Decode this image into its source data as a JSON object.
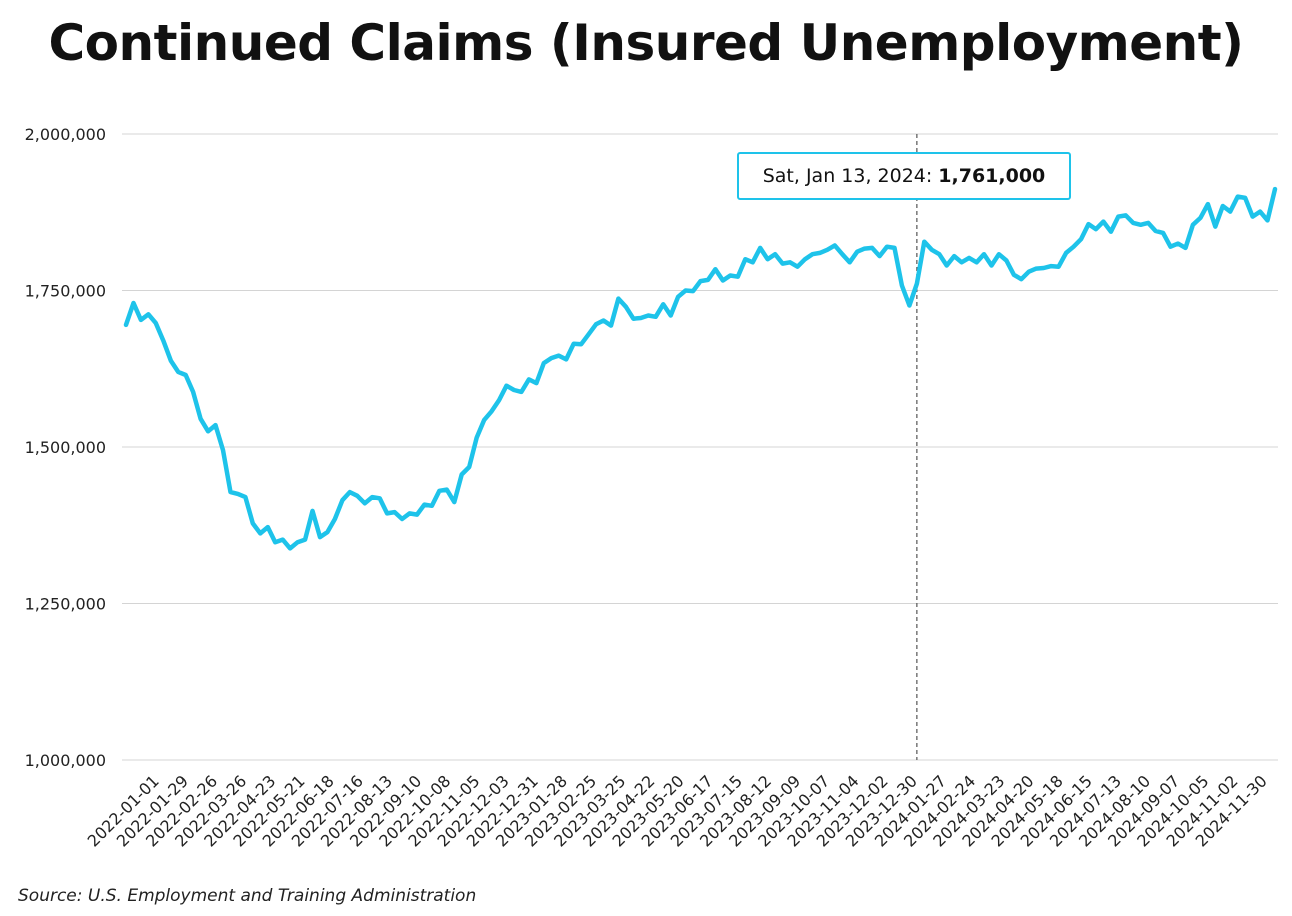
{
  "chart_data": {
    "type": "line",
    "title": "Continued Claims (Insured Unemployment)",
    "xlabel": "",
    "ylabel": "",
    "ylim": [
      1000000,
      2000000
    ],
    "yticks": [
      1000000,
      1250000,
      1500000,
      1750000,
      2000000
    ],
    "ytick_labels": [
      "1,000,000",
      "1,250,000",
      "1,500,000",
      "1,750,000",
      "2,000,000"
    ],
    "xtick_labels": [
      "2022-01-01",
      "2022-01-29",
      "2022-02-26",
      "2022-03-26",
      "2022-04-23",
      "2022-05-21",
      "2022-06-18",
      "2022-07-16",
      "2022-08-13",
      "2022-09-10",
      "2022-10-08",
      "2022-11-05",
      "2022-12-03",
      "2022-12-31",
      "2023-01-28",
      "2023-02-25",
      "2023-03-25",
      "2023-04-22",
      "2023-05-20",
      "2023-06-17",
      "2023-07-15",
      "2023-08-12",
      "2023-09-09",
      "2023-10-07",
      "2023-11-04",
      "2023-12-02",
      "2023-12-30",
      "2024-01-27",
      "2024-02-24",
      "2024-03-23",
      "2024-04-20",
      "2024-05-18",
      "2024-06-15",
      "2024-07-13",
      "2024-08-10",
      "2024-09-07",
      "2024-10-05",
      "2024-11-02",
      "2024-11-30"
    ],
    "grid": true,
    "legend": "none",
    "line_color": "#1ec3ea",
    "highlight_index": 106,
    "series": [
      {
        "values": [
          1695000,
          1730000,
          1703000,
          1712000,
          1698000,
          1670000,
          1638000,
          1620000,
          1615000,
          1588000,
          1545000,
          1525000,
          1535000,
          1495000,
          1428000,
          1425000,
          1420000,
          1378000,
          1362000,
          1372000,
          1348000,
          1352000,
          1338000,
          1348000,
          1352000,
          1398000,
          1356000,
          1364000,
          1385000,
          1415000,
          1428000,
          1422000,
          1410000,
          1420000,
          1418000,
          1394000,
          1396000,
          1385000,
          1394000,
          1392000,
          1408000,
          1406000,
          1430000,
          1432000,
          1412000,
          1456000,
          1468000,
          1515000,
          1543000,
          1557000,
          1575000,
          1598000,
          1591000,
          1588000,
          1608000,
          1602000,
          1634000,
          1642000,
          1646000,
          1640000,
          1665000,
          1664000,
          1680000,
          1696000,
          1702000,
          1694000,
          1737000,
          1724000,
          1705000,
          1706000,
          1710000,
          1708000,
          1728000,
          1710000,
          1740000,
          1750000,
          1749000,
          1765000,
          1767000,
          1784000,
          1766000,
          1774000,
          1772000,
          1800000,
          1795000,
          1818000,
          1800000,
          1808000,
          1793000,
          1795000,
          1788000,
          1800000,
          1808000,
          1810000,
          1815000,
          1822000,
          1808000,
          1795000,
          1812000,
          1817000,
          1818000,
          1805000,
          1820000,
          1818000,
          1758000,
          1726000,
          1761000,
          1828000,
          1815000,
          1808000,
          1790000,
          1805000,
          1795000,
          1802000,
          1795000,
          1808000,
          1790000,
          1808000,
          1798000,
          1775000,
          1768000,
          1780000,
          1785000,
          1786000,
          1789000,
          1788000,
          1810000,
          1820000,
          1832000,
          1856000,
          1848000,
          1860000,
          1844000,
          1868000,
          1870000,
          1858000,
          1855000,
          1858000,
          1845000,
          1842000,
          1820000,
          1825000,
          1818000,
          1855000,
          1866000,
          1888000,
          1852000,
          1885000,
          1876000,
          1900000,
          1898000,
          1868000,
          1876000,
          1862000,
          1912000
        ]
      }
    ]
  },
  "tooltip": {
    "date": "Sat, Jan 13, 2024:",
    "value": "1,761,000"
  },
  "source": "Source: U.S. Employment and Training Administration"
}
